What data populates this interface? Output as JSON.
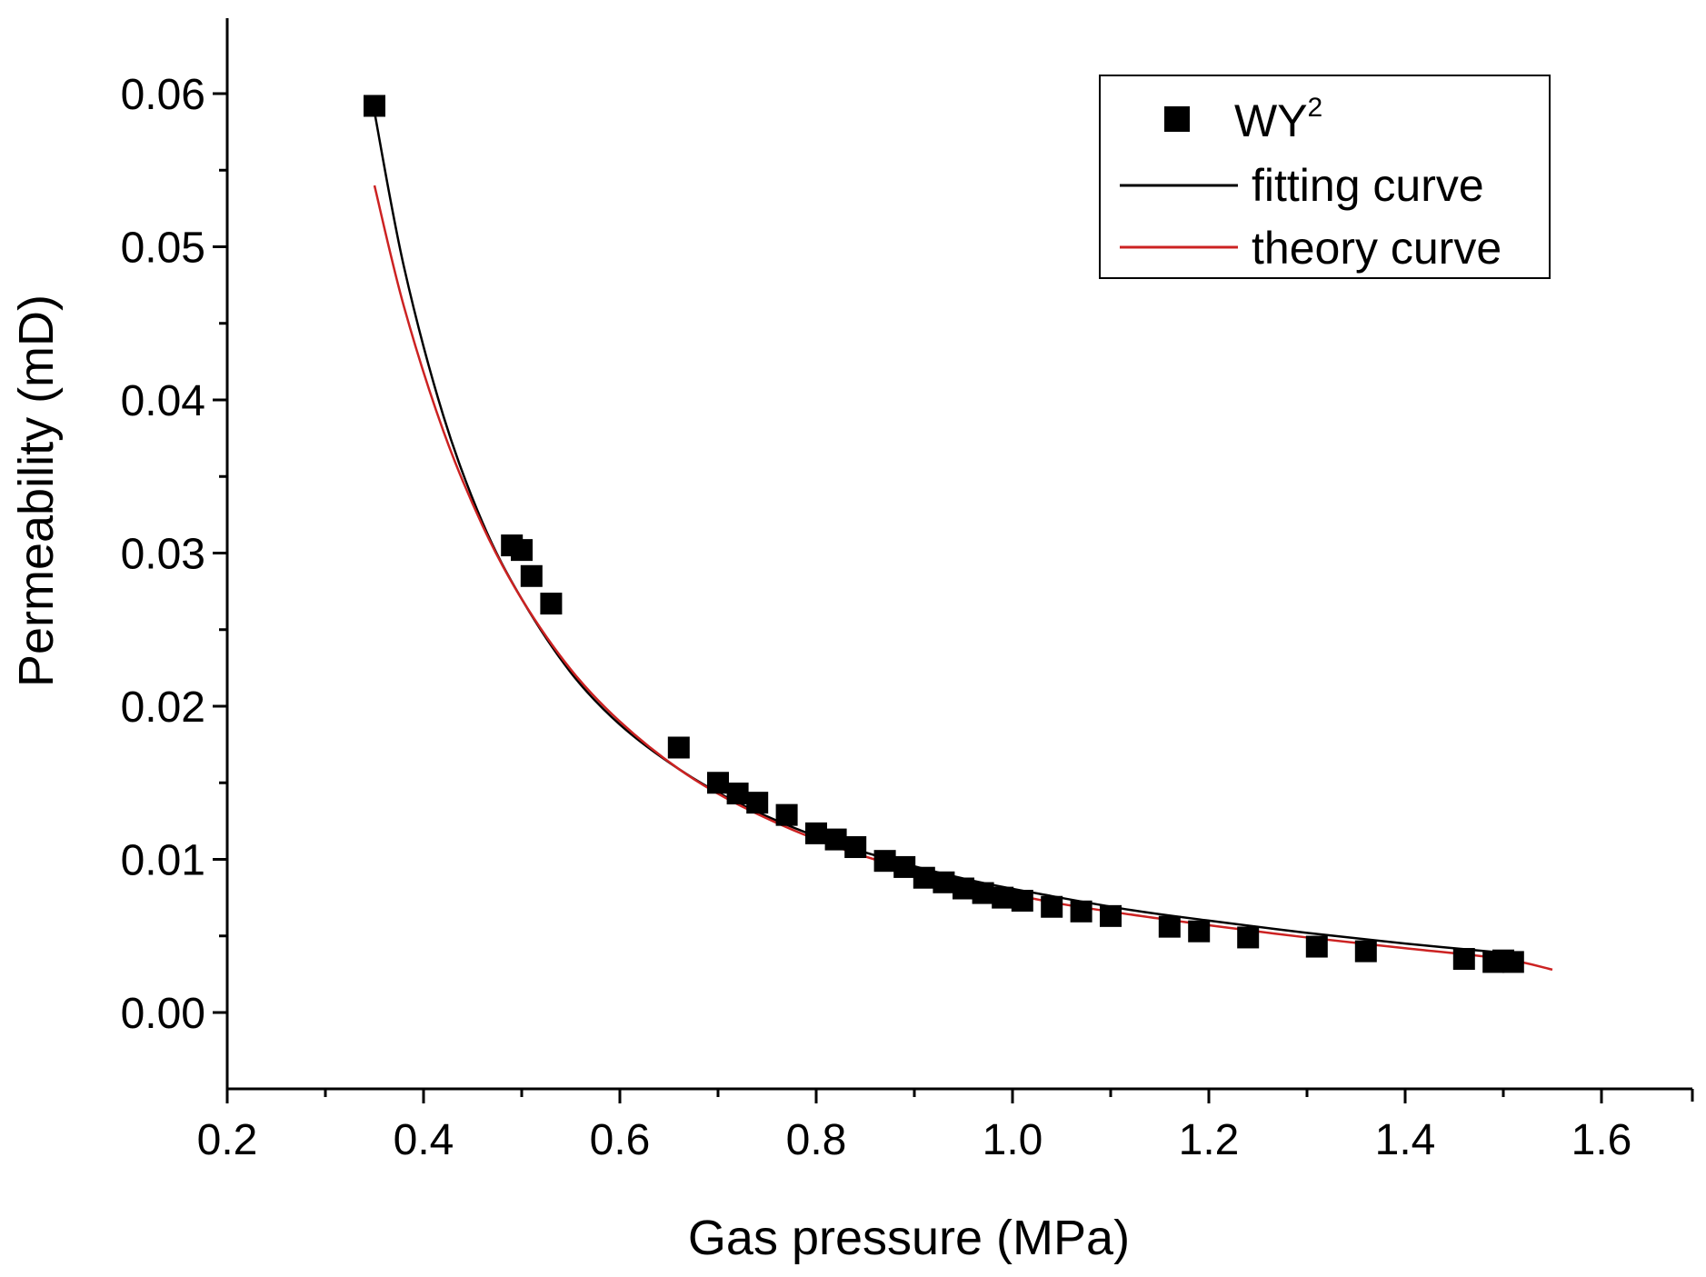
{
  "chart_data": {
    "type": "scatter",
    "title": "",
    "xlabel": "Gas pressure (MPa)",
    "ylabel": "Permeability (mD)",
    "xlim": [
      0.2,
      1.7
    ],
    "ylim": [
      -0.005,
      0.065
    ],
    "x_ticks": [
      0.2,
      0.4,
      0.6,
      0.8,
      1.0,
      1.2,
      1.4,
      1.6
    ],
    "x_tick_labels": [
      "0.2",
      "0.4",
      "0.6",
      "0.8",
      "1.0",
      "1.2",
      "1.4",
      "1.6"
    ],
    "y_ticks": [
      0.0,
      0.01,
      0.02,
      0.03,
      0.04,
      0.05,
      0.06
    ],
    "y_tick_labels": [
      "0.00",
      "0.01",
      "0.02",
      "0.03",
      "0.04",
      "0.05",
      "0.06"
    ],
    "legend_position": "top-right",
    "series": [
      {
        "name": "WY",
        "name_superscript": "2",
        "kind": "points",
        "marker": "square",
        "color": "#000000",
        "x": [
          0.35,
          0.49,
          0.5,
          0.51,
          0.53,
          0.66,
          0.7,
          0.72,
          0.74,
          0.77,
          0.8,
          0.82,
          0.84,
          0.87,
          0.89,
          0.91,
          0.93,
          0.95,
          0.97,
          0.99,
          1.01,
          1.04,
          1.07,
          1.1,
          1.16,
          1.19,
          1.24,
          1.31,
          1.36,
          1.46,
          1.49,
          1.5,
          1.51
        ],
        "y": [
          0.0592,
          0.0305,
          0.0302,
          0.0285,
          0.0267,
          0.0173,
          0.015,
          0.0143,
          0.0137,
          0.0129,
          0.0117,
          0.0113,
          0.0108,
          0.0099,
          0.0095,
          0.0088,
          0.0085,
          0.0081,
          0.0078,
          0.0075,
          0.0073,
          0.0069,
          0.0066,
          0.0063,
          0.0056,
          0.0053,
          0.0049,
          0.0043,
          0.004,
          0.0035,
          0.0033,
          0.0034,
          0.0033
        ]
      },
      {
        "name": "fitting curve",
        "kind": "line",
        "color": "#000000",
        "x": [
          0.35,
          0.38,
          0.42,
          0.46,
          0.5,
          0.55,
          0.6,
          0.66,
          0.72,
          0.8,
          0.88,
          0.96,
          1.04,
          1.12,
          1.2,
          1.3,
          1.4,
          1.5
        ],
        "y": [
          0.0588,
          0.0487,
          0.039,
          0.032,
          0.027,
          0.0222,
          0.0188,
          0.0159,
          0.0137,
          0.0115,
          0.0099,
          0.0086,
          0.0076,
          0.0067,
          0.006,
          0.0052,
          0.0045,
          0.0039
        ]
      },
      {
        "name": "theory curve",
        "kind": "line",
        "color": "#cc2222",
        "x": [
          0.35,
          0.38,
          0.42,
          0.46,
          0.5,
          0.55,
          0.6,
          0.66,
          0.72,
          0.8,
          0.88,
          0.96,
          1.04,
          1.12,
          1.2,
          1.3,
          1.4,
          1.5,
          1.55
        ],
        "y": [
          0.054,
          0.0461,
          0.038,
          0.0318,
          0.027,
          0.0224,
          0.019,
          0.0159,
          0.0136,
          0.0113,
          0.0096,
          0.0083,
          0.0072,
          0.0064,
          0.0057,
          0.0049,
          0.0042,
          0.0035,
          0.0028
        ]
      }
    ]
  }
}
